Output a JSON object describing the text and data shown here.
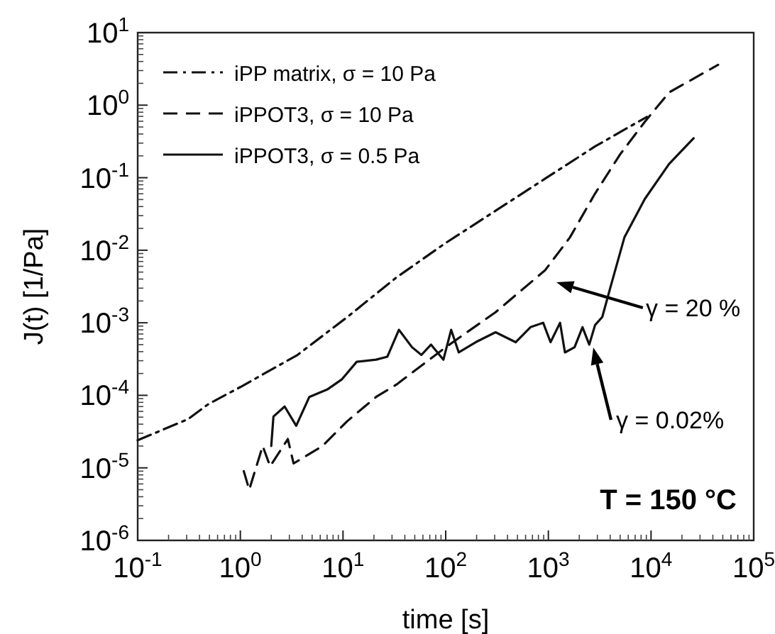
{
  "chart_data": {
    "type": "line",
    "xlabel": "time [s]",
    "ylabel": "J(t) [1/Pa]",
    "log": "xy",
    "legend": "top left",
    "grid": false,
    "xlim": [
      0.1,
      100000
    ],
    "ylim": [
      1e-06,
      10
    ],
    "xticks": [
      {
        "value": 0.1,
        "label": "10$^{-1}$"
      },
      {
        "value": 1,
        "label": "10$^{0}$"
      },
      {
        "value": 10,
        "label": "10$^{1}$"
      },
      {
        "value": 100,
        "label": "10$^{2}$"
      },
      {
        "value": 1000,
        "label": "10$^{3}$"
      },
      {
        "value": 10000,
        "label": "10$^{4}$"
      },
      {
        "value": 100000,
        "label": "10$^{5}$"
      }
    ],
    "yticks": [
      {
        "value": 1e-06,
        "label": "10$^{-6}$"
      },
      {
        "value": 1e-05,
        "label": "10$^{-5}$"
      },
      {
        "value": 0.0001,
        "label": "10$^{-4}$"
      },
      {
        "value": 0.001,
        "label": "10$^{-3}$"
      },
      {
        "value": 0.01,
        "label": "10$^{-2}$"
      },
      {
        "value": 0.1,
        "label": "10$^{-1}$"
      },
      {
        "value": 1,
        "label": "10$^{0}$"
      },
      {
        "value": 10,
        "label": "10$^{1}$"
      }
    ],
    "series": [
      {
        "name": "iPP matrix, σ = 10 Pa",
        "color": "#111111",
        "line_style": "dashdot",
        "x": [
          0.1,
          0.31,
          0.49,
          1,
          3.6,
          11,
          33,
          100,
          306,
          930,
          2850,
          9100
        ],
        "values": [
          2.4e-05,
          4.7e-05,
          7.6e-05,
          0.00013,
          0.00036,
          0.0012,
          0.0042,
          0.0126,
          0.035,
          0.097,
          0.27,
          0.69
        ]
      },
      {
        "name": "iPPOT3, σ = 10 Pa",
        "color": "#111111",
        "line_style": "dashed",
        "x": [
          1.08,
          1.22,
          1.65,
          1.95,
          2.9,
          3.3,
          6.3,
          11,
          21,
          33,
          100,
          306,
          930,
          1620,
          2840,
          5000,
          8700,
          15000,
          45000
        ],
        "values": [
          9e-06,
          5e-06,
          2e-05,
          1.05e-05,
          2.5e-05,
          1.15e-05,
          2e-05,
          4.4e-05,
          9.5e-05,
          0.00014,
          0.00046,
          0.0014,
          0.0053,
          0.015,
          0.06,
          0.21,
          0.59,
          1.5,
          3.6
        ]
      },
      {
        "name": "iPPOT3, σ = 0.5 Pa",
        "color": "#111111",
        "line_style": "solid",
        "x": [
          2.0,
          2.1,
          2.7,
          3.5,
          4.7,
          7,
          9.7,
          13.6,
          21,
          27,
          35,
          47,
          58,
          72,
          95,
          113,
          134,
          196,
          306,
          480,
          670,
          890,
          1050,
          1300,
          1450,
          1800,
          2150,
          2500,
          2850,
          3350,
          4000,
          5500,
          8700,
          15000,
          26000
        ],
        "values": [
          2e-05,
          5.1e-05,
          7e-05,
          3.8e-05,
          9.5e-05,
          0.00012,
          0.000165,
          0.00029,
          0.00031,
          0.00034,
          0.0008,
          0.00046,
          0.00036,
          0.0005,
          0.00031,
          0.0008,
          0.00039,
          0.00054,
          0.00074,
          0.00054,
          0.00087,
          0.001,
          0.00054,
          0.001,
          0.00039,
          0.00046,
          0.00087,
          0.0005,
          0.00093,
          0.0012,
          0.003,
          0.015,
          0.051,
          0.155,
          0.35
        ]
      }
    ],
    "annotations": [
      "γ = 20 %",
      "γ = 0.02%",
      "T = 150 °C"
    ]
  }
}
